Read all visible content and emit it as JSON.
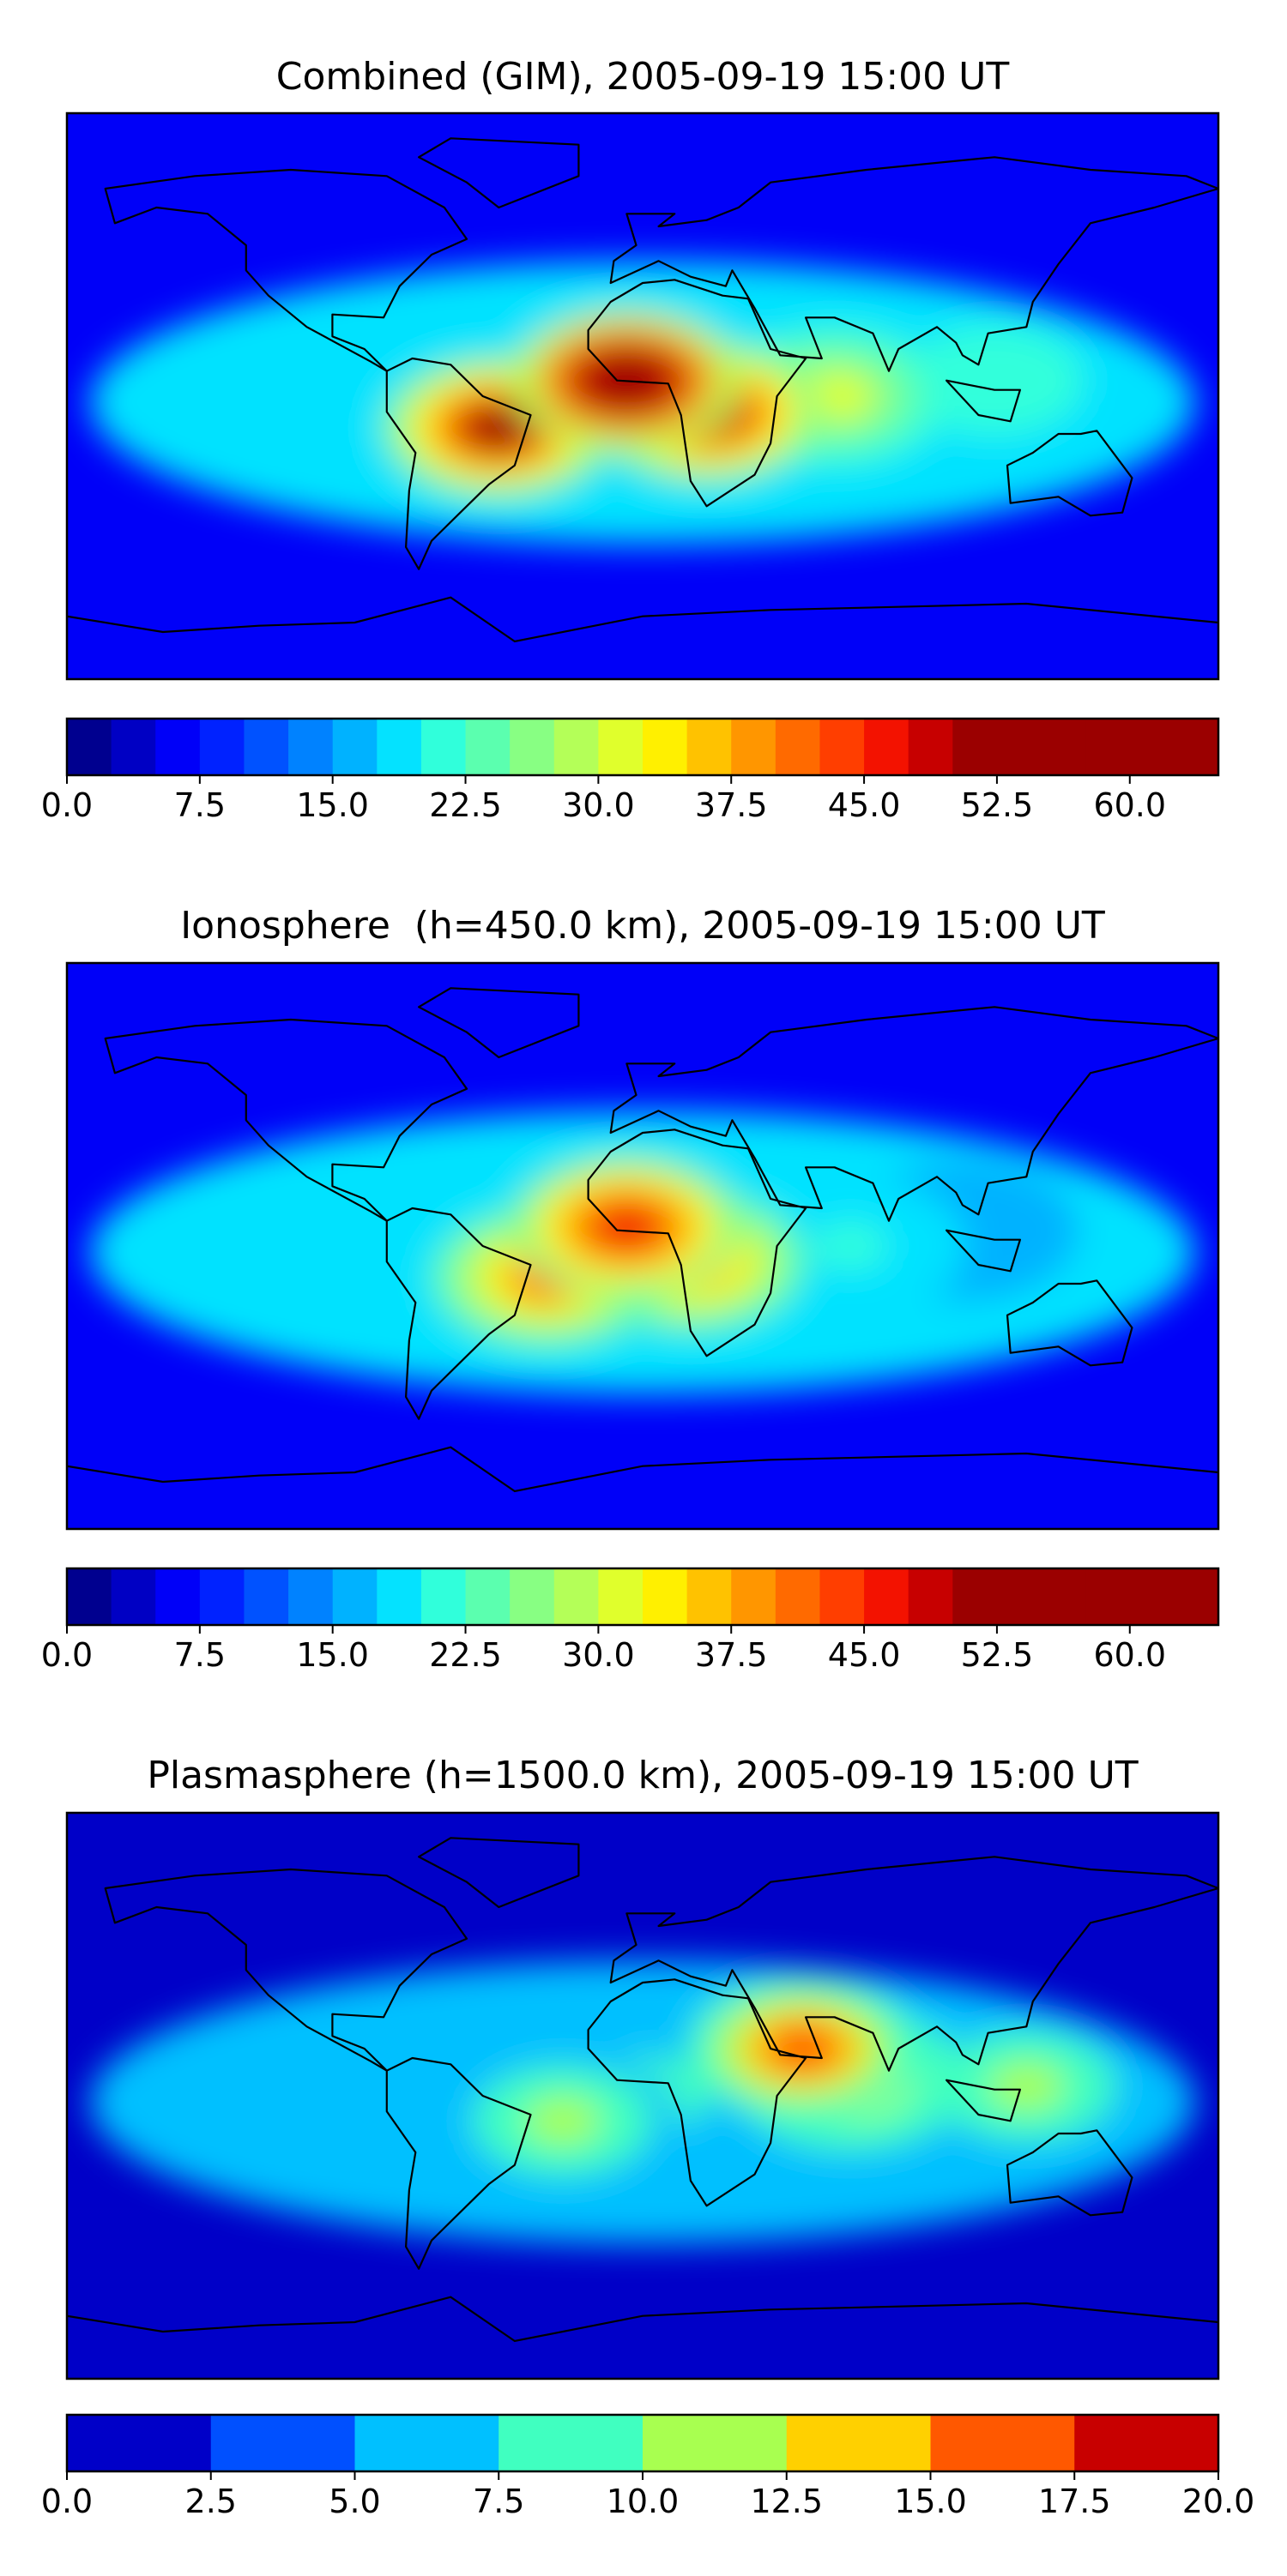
{
  "chart_data": [
    {
      "type": "heatmap",
      "title": "Combined (GIM), 2005-09-19 15:00 UT",
      "colorbar": {
        "min": 0.0,
        "max": 65.0,
        "step": 2.5,
        "ticks": [
          0.0,
          7.5,
          15.0,
          22.5,
          30.0,
          37.5,
          45.0,
          52.5,
          60.0
        ],
        "tick_labels": [
          "0.0",
          "7.5",
          "15.0",
          "22.5",
          "30.0",
          "37.5",
          "45.0",
          "52.5",
          "60.0"
        ]
      },
      "field_features": [
        {
          "label": "Africa equatorial anomaly peak",
          "lon": -5,
          "lat": 5,
          "value": 60
        },
        {
          "label": "South America maximum",
          "lon": -45,
          "lat": -10,
          "value": 50
        },
        {
          "label": "Central Africa maximum",
          "lon": 20,
          "lat": -5,
          "value": 50
        },
        {
          "label": "Indian Ocean band",
          "lon": 60,
          "lat": 0,
          "value": 30
        },
        {
          "label": "Southeast Asia tongue",
          "lon": 110,
          "lat": 5,
          "value": 22
        }
      ]
    },
    {
      "type": "heatmap",
      "title": "Ionosphere  (h=450.0 km), 2005-09-19 15:00 UT",
      "colorbar": {
        "min": 0.0,
        "max": 65.0,
        "step": 2.5,
        "ticks": [
          0.0,
          7.5,
          15.0,
          22.5,
          30.0,
          37.5,
          45.0,
          52.5,
          60.0
        ],
        "tick_labels": [
          "0.0",
          "7.5",
          "15.0",
          "22.5",
          "30.0",
          "37.5",
          "45.0",
          "52.5",
          "60.0"
        ]
      },
      "field_features": [
        {
          "label": "Africa equatorial peak",
          "lon": -5,
          "lat": 6,
          "value": 47
        },
        {
          "label": "South Atlantic / Brazil maximum",
          "lon": -30,
          "lat": -10,
          "value": 40
        },
        {
          "label": "Central Africa maximum",
          "lon": 15,
          "lat": -5,
          "value": 38
        },
        {
          "label": "Indian Ocean band",
          "lon": 65,
          "lat": 0,
          "value": 20
        },
        {
          "label": "Southeast Asia tongue",
          "lon": 100,
          "lat": 5,
          "value": 15
        }
      ]
    },
    {
      "type": "heatmap",
      "title": "Plasmasphere (h=1500.0 km), 2005-09-19 15:00 UT",
      "colorbar": {
        "min": 0.0,
        "max": 20.0,
        "step": 2.5,
        "ticks": [
          0.0,
          2.5,
          5.0,
          7.5,
          10.0,
          12.5,
          15.0,
          17.5,
          20.0
        ],
        "tick_labels": [
          "0.0",
          "2.5",
          "5.0",
          "7.5",
          "10.0",
          "12.5",
          "15.0",
          "17.5",
          "20.0"
        ]
      },
      "field_features": [
        {
          "label": "Arabian Sea maximum",
          "lon": 50,
          "lat": 15,
          "value": 15
        },
        {
          "label": "Indian Ocean high",
          "lon": 65,
          "lat": 5,
          "value": 12
        },
        {
          "label": "South America high",
          "lon": -25,
          "lat": -8,
          "value": 11
        },
        {
          "label": "Southeast Asia high",
          "lon": 120,
          "lat": 3,
          "value": 11
        },
        {
          "label": "Mid-latitude band",
          "lon": 0,
          "lat": 0,
          "value": 8
        }
      ]
    }
  ],
  "map_extent": {
    "lon": [
      -180,
      180
    ],
    "lat": [
      -90,
      90
    ]
  },
  "colors": {
    "jet": [
      "#00008f",
      "#0000c4",
      "#0000f8",
      "#0022ff",
      "#0052ff",
      "#0082ff",
      "#00b2ff",
      "#04e2ff",
      "#30ffdb",
      "#5bffaf",
      "#88ff83",
      "#b4ff58",
      "#e0ff2c",
      "#fff000",
      "#ffc200",
      "#ff9600",
      "#ff6a00",
      "#ff3e00",
      "#f31200",
      "#c70000",
      "#9b0000"
    ],
    "plasma": [
      "#0000c8",
      "#0050ff",
      "#00c0ff",
      "#40ffc0",
      "#a8ff50",
      "#ffd000",
      "#ff5800",
      "#c80000"
    ]
  }
}
